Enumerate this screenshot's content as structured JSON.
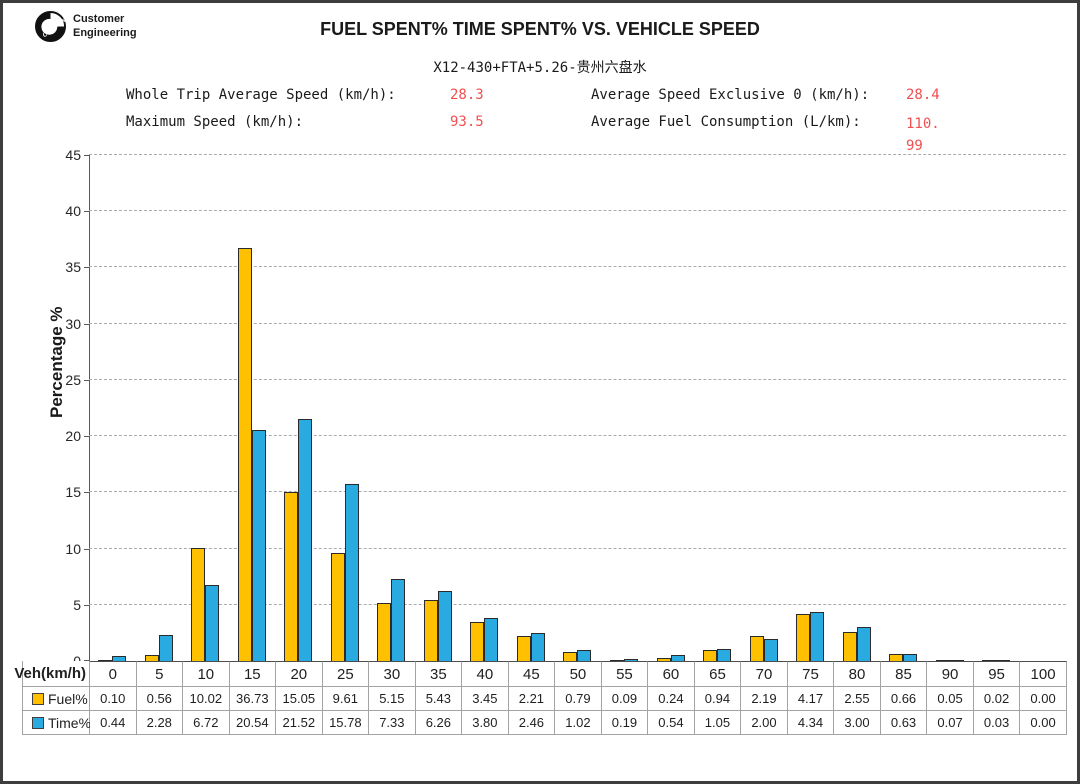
{
  "page": {
    "logo": {
      "brand": "Cummins",
      "label_line1": "Customer",
      "label_line2": "Engineering"
    },
    "title": "FUEL SPENT% TIME SPENT% VS. VEHICLE SPEED",
    "subtitle": "X12-430+FTA+5.26-贵州六盘水"
  },
  "stats": [
    {
      "label": "Whole Trip Average Speed (km/h):",
      "value": "28.3"
    },
    {
      "label": "Maximum Speed (km/h):",
      "value": "93.5"
    },
    {
      "label": "Average Speed Exclusive 0 (km/h):",
      "value": "28.4"
    },
    {
      "label": "Average Fuel Consumption (L/km):",
      "value": "110.99",
      "value_lines": [
        "110.",
        "99"
      ]
    }
  ],
  "colors": {
    "fuel_bar": "#FFC000",
    "time_bar": "#29ABE2",
    "bar_outline": "#2b2b2b",
    "stat_value_red": "#F05050",
    "gridline": "#ababab",
    "axis": "#595959"
  },
  "chart_data": {
    "type": "bar",
    "title": "FUEL SPENT% TIME SPENT% VS. VEHICLE SPEED",
    "subtitle": "X12-430+FTA+5.26-贵州六盘水",
    "xlabel": "Veh(km/h)",
    "ylabel": "Percentage %",
    "ylim": [
      0,
      45
    ],
    "ytick_step": 5,
    "grid": "horizontal-dashed",
    "legend_position": "table-left",
    "categories": [
      "0",
      "5",
      "10",
      "15",
      "20",
      "25",
      "30",
      "35",
      "40",
      "45",
      "50",
      "55",
      "60",
      "65",
      "70",
      "75",
      "80",
      "85",
      "90",
      "95",
      "100"
    ],
    "series": [
      {
        "name": "Fuel%",
        "color": "#FFC000",
        "values": [
          "0.10",
          "0.56",
          "10.02",
          "36.73",
          "15.05",
          "9.61",
          "5.15",
          "5.43",
          "3.45",
          "2.21",
          "0.79",
          "0.09",
          "0.24",
          "0.94",
          "2.19",
          "4.17",
          "2.55",
          "0.66",
          "0.05",
          "0.02",
          "0.00"
        ]
      },
      {
        "name": "Time%",
        "color": "#29ABE2",
        "values": [
          "0.44",
          "2.28",
          "6.72",
          "20.54",
          "21.52",
          "15.78",
          "7.33",
          "6.26",
          "3.80",
          "2.46",
          "1.02",
          "0.19",
          "0.54",
          "1.05",
          "2.00",
          "4.34",
          "3.00",
          "0.63",
          "0.07",
          "0.03",
          "0.00"
        ]
      }
    ]
  }
}
